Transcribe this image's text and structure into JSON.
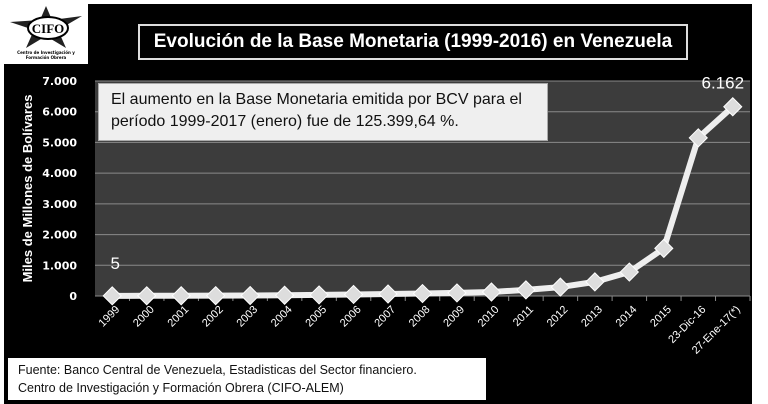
{
  "logo": {
    "text": "CIFO",
    "subtitle": "Centro de Investigación y Formación Obrera"
  },
  "chart_data": {
    "type": "line",
    "title": "Evolución de la Base Monetaria (1999-2016) en Venezuela",
    "ylabel": "Miles de Millones de Bolívares",
    "xlabel": "",
    "ylim": [
      0,
      7000
    ],
    "yticks": [
      "0",
      "1.000",
      "2.000",
      "3.000",
      "4.000",
      "5.000",
      "6.000",
      "7.000"
    ],
    "ytick_values": [
      0,
      1000,
      2000,
      3000,
      4000,
      5000,
      6000,
      7000
    ],
    "categories": [
      "1999",
      "2000",
      "2001",
      "2002",
      "2003",
      "2004",
      "2005",
      "2006",
      "2007",
      "2008",
      "2009",
      "2010",
      "2011",
      "2012",
      "2013",
      "2014",
      "2015",
      "23-Dic-16",
      "27-Ene-17(*)"
    ],
    "series": [
      {
        "name": "Base Monetaria",
        "values": [
          5,
          7,
          8,
          11,
          15,
          25,
          35,
          50,
          65,
          80,
          100,
          130,
          200,
          290,
          460,
          780,
          1550,
          5150,
          6162
        ]
      }
    ],
    "data_labels": [
      {
        "category": "1999",
        "text": "5"
      },
      {
        "category": "27-Ene-17(*)",
        "text": "6.162"
      }
    ],
    "grid": true,
    "annotation": "El aumento en la Base Monetaria emitida por BCV para el período 1999-2017 (enero) fue de 125.399,64 %."
  },
  "annotation_lines": [
    "El aumento en la Base Monetaria emitida por BCV para el",
    "período 1999-2017 (enero) fue de 125.399,64 %."
  ],
  "footer": [
    "Fuente: Banco Central de Venezuela, Estadisticas del Sector financiero.",
    "Centro de Investigación y Formación Obrera (CIFO-ALEM)"
  ]
}
